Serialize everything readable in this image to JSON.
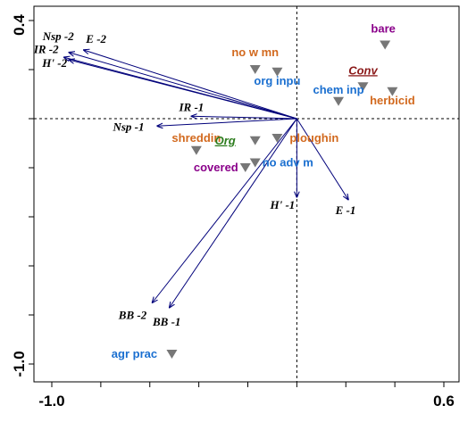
{
  "colors": {
    "arrow": "#00007a",
    "marker": "#777777",
    "axis": "#000000",
    "zero_line": "#000000"
  },
  "chart_data": {
    "type": "scatter",
    "subtype": "ordination-biplot",
    "title": "",
    "xlabel": "",
    "ylabel": "",
    "xlim": [
      -1.0,
      0.6
    ],
    "ylim": [
      -1.0,
      0.4
    ],
    "x_tick_labels": [
      {
        "value": -1.0,
        "label": "-1.0"
      },
      {
        "value": 0.6,
        "label": "0.6"
      }
    ],
    "y_tick_labels": [
      {
        "value": 0.4,
        "label": "0.4"
      },
      {
        "value": -1.0,
        "label": "-1.0"
      }
    ],
    "zero_lines": true,
    "vectors": [
      {
        "label": "Nsp -2",
        "x": -0.93,
        "y": 0.27
      },
      {
        "label": "E -2",
        "x": -0.87,
        "y": 0.28
      },
      {
        "label": "IR -2",
        "x": -0.95,
        "y": 0.25
      },
      {
        "label": "H' -2",
        "x": -0.93,
        "y": 0.24
      },
      {
        "label": "IR -1",
        "x": -0.43,
        "y": 0.01
      },
      {
        "label": "Nsp -1",
        "x": -0.57,
        "y": -0.03
      },
      {
        "label": "H' -1",
        "x": 0.0,
        "y": -0.32
      },
      {
        "label": "E -1",
        "x": 0.21,
        "y": -0.33
      },
      {
        "label": "BB -2",
        "x": -0.59,
        "y": -0.75
      },
      {
        "label": "BB -1",
        "x": -0.52,
        "y": -0.77
      }
    ],
    "sites": [
      {
        "label": "bare",
        "x": 0.36,
        "y": 0.3,
        "color": "#8a008a",
        "italic": false,
        "underline": false
      },
      {
        "label": "Conv",
        "x": 0.27,
        "y": 0.13,
        "color": "#8b1a1a",
        "italic": true,
        "underline": true
      },
      {
        "label": "herbicid",
        "x": 0.39,
        "y": 0.11,
        "color": "#d2691e",
        "italic": false,
        "underline": false
      },
      {
        "label": "no w mn",
        "x": -0.17,
        "y": 0.2,
        "color": "#d2691e",
        "italic": false,
        "underline": false
      },
      {
        "label": "org inpu",
        "x": -0.08,
        "y": 0.19,
        "color": "#1a6fd0",
        "italic": false,
        "underline": false
      },
      {
        "label": "chem inp",
        "x": 0.17,
        "y": 0.07,
        "color": "#1a6fd0",
        "italic": false,
        "underline": false
      },
      {
        "label": "shreddin",
        "x": -0.41,
        "y": -0.13,
        "color": "#d2691e",
        "italic": false,
        "underline": false
      },
      {
        "label": "Org",
        "x": -0.17,
        "y": -0.09,
        "color": "#2e7d1f",
        "italic": true,
        "underline": true
      },
      {
        "label": "ploughin",
        "x": -0.08,
        "y": -0.08,
        "color": "#d2691e",
        "italic": false,
        "underline": false
      },
      {
        "label": "no adv m",
        "x": -0.17,
        "y": -0.18,
        "color": "#1a6fd0",
        "italic": false,
        "underline": false
      },
      {
        "label": "covered",
        "x": -0.21,
        "y": -0.2,
        "color": "#8a008a",
        "italic": false,
        "underline": false
      },
      {
        "label": "agr prac",
        "x": -0.51,
        "y": -0.96,
        "color": "#1a6fd0",
        "italic": false,
        "underline": false
      }
    ]
  }
}
